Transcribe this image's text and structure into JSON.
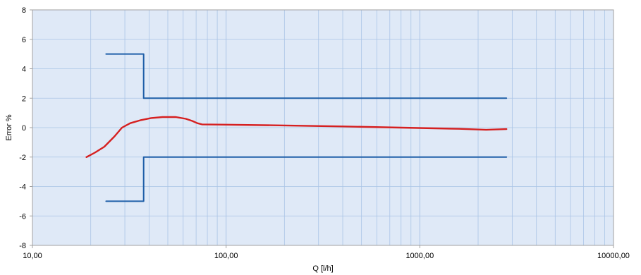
{
  "chart_data": {
    "type": "line",
    "title": "",
    "xlabel": "Q [l/h]",
    "ylabel": "Error %",
    "xscale": "log",
    "xlim": [
      10,
      10000
    ],
    "ylim": [
      -8,
      8
    ],
    "x_ticks": [
      10,
      100,
      1000,
      10000
    ],
    "x_tick_labels": [
      "10,00",
      "100,00",
      "1000,00",
      "10000,00"
    ],
    "y_ticks": [
      -8,
      -6,
      -4,
      -2,
      0,
      2,
      4,
      6,
      8
    ],
    "y_tick_labels": [
      "-8",
      "-6",
      "-4",
      "-2",
      "0",
      "2",
      "4",
      "6",
      "8"
    ],
    "grid": true,
    "legend": "none",
    "colors": {
      "plot_bg": "#dfe9f7",
      "grid": "#aac4e6",
      "limits": "#1f5fa8",
      "error": "#d62020",
      "frame": "#a0a0a0"
    },
    "series": [
      {
        "role": "upper-limit",
        "color": "#1f5fa8",
        "x": [
          24,
          37.5,
          37.5,
          2800
        ],
        "y": [
          5,
          5,
          2,
          2
        ]
      },
      {
        "role": "lower-limit",
        "color": "#1f5fa8",
        "x": [
          24,
          37.5,
          37.5,
          2800
        ],
        "y": [
          -5,
          -5,
          -2,
          -2
        ]
      },
      {
        "role": "error-curve",
        "color": "#d62020",
        "x": [
          19,
          21,
          23.5,
          26.5,
          29,
          32,
          36,
          41,
          47,
          55,
          62,
          67,
          71,
          75,
          100,
          200,
          400,
          800,
          1600,
          2200,
          2800
        ],
        "y": [
          -2.0,
          -1.7,
          -1.3,
          -0.6,
          0.0,
          0.3,
          0.5,
          0.65,
          0.72,
          0.72,
          0.6,
          0.45,
          0.3,
          0.22,
          0.2,
          0.15,
          0.08,
          0.0,
          -0.08,
          -0.15,
          -0.1
        ]
      }
    ]
  }
}
